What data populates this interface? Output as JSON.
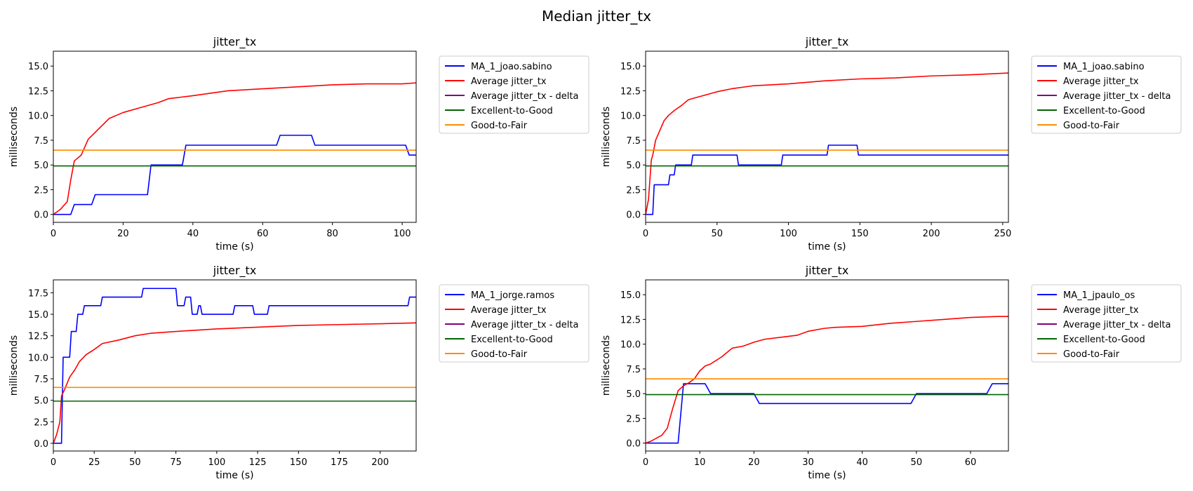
{
  "figure": {
    "suptitle": "Median jitter_tx"
  },
  "colors": {
    "user": "#0000ff",
    "average": "#ff0000",
    "delta": "#800080",
    "excellent_to_good": "#006400",
    "good_to_fair": "#ff8c00"
  },
  "chart_data": [
    {
      "type": "line",
      "title": "jitter_tx",
      "xlabel": "time (s)",
      "ylabel": "milliseconds",
      "xlim": [
        0,
        104
      ],
      "ylim": [
        -0.8,
        16.5
      ],
      "xticks": [
        0,
        20,
        40,
        60,
        80,
        100
      ],
      "yticks": [
        0.0,
        2.5,
        5.0,
        7.5,
        10.0,
        12.5,
        15.0
      ],
      "tick_decimals": 1,
      "grid": false,
      "legend_position": "outside-upper-right",
      "legend": [
        "MA_1_joao.sabino",
        "Average jitter_tx",
        "Average jitter_tx - delta",
        "Excellent-to-Good",
        "Good-to-Fair"
      ],
      "series": [
        {
          "name": "MA_1_joao.sabino",
          "color": "#0000ff",
          "x": [
            0,
            5,
            6,
            11,
            12,
            27,
            28,
            37,
            38,
            64,
            65,
            74,
            75,
            101,
            102,
            104
          ],
          "y": [
            0,
            0,
            1,
            1,
            2,
            2,
            5,
            5,
            7,
            7,
            8,
            8,
            7,
            7,
            6,
            6
          ]
        },
        {
          "name": "Average jitter_tx",
          "color": "#ff0000",
          "x": [
            0,
            2,
            4,
            5,
            6,
            8,
            10,
            12,
            14,
            16,
            20,
            25,
            30,
            33,
            40,
            50,
            60,
            70,
            80,
            90,
            100,
            104
          ],
          "y": [
            0,
            0.5,
            1.3,
            3.5,
            5.4,
            6,
            7.6,
            8.3,
            9,
            9.7,
            10.3,
            10.8,
            11.3,
            11.7,
            12,
            12.5,
            12.7,
            12.9,
            13.1,
            13.2,
            13.2,
            13.3
          ]
        },
        {
          "name": "Average jitter_tx - delta",
          "color": "#800080",
          "x": [],
          "y": []
        },
        {
          "name": "Excellent-to-Good",
          "color": "#006400",
          "x": [
            0,
            104
          ],
          "y": [
            4.9,
            4.9
          ]
        },
        {
          "name": "Good-to-Fair",
          "color": "#ff8c00",
          "x": [
            0,
            104
          ],
          "y": [
            6.5,
            6.5
          ]
        }
      ]
    },
    {
      "type": "line",
      "title": "jitter_tx",
      "xlabel": "time (s)",
      "ylabel": "milliseconds",
      "xlim": [
        0,
        254
      ],
      "ylim": [
        -0.8,
        16.5
      ],
      "xticks": [
        0,
        50,
        100,
        150,
        200,
        250
      ],
      "yticks": [
        0.0,
        2.5,
        5.0,
        7.5,
        10.0,
        12.5,
        15.0
      ],
      "tick_decimals": 1,
      "grid": false,
      "legend_position": "outside-upper-right",
      "legend": [
        "MA_1_joao.sabino",
        "Average jitter_tx",
        "Average jitter_tx - delta",
        "Excellent-to-Good",
        "Good-to-Fair"
      ],
      "series": [
        {
          "name": "MA_1_joao.sabino",
          "color": "#0000ff",
          "x": [
            0,
            5,
            6,
            16,
            17,
            20,
            21,
            32,
            33,
            64,
            65,
            95,
            96,
            127,
            128,
            148,
            149,
            254
          ],
          "y": [
            0,
            0,
            3,
            3,
            4,
            4,
            5,
            5,
            6,
            6,
            5,
            5,
            6,
            6,
            7,
            7,
            6,
            6
          ]
        },
        {
          "name": "Average jitter_tx",
          "color": "#ff0000",
          "x": [
            0,
            2,
            4,
            5,
            7,
            10,
            13,
            16,
            20,
            25,
            30,
            35,
            40,
            50,
            60,
            75,
            100,
            125,
            150,
            175,
            200,
            225,
            254
          ],
          "y": [
            0,
            1.5,
            5.5,
            6,
            7.5,
            8.5,
            9.5,
            10,
            10.5,
            11,
            11.6,
            11.8,
            12,
            12.4,
            12.7,
            13,
            13.2,
            13.5,
            13.7,
            13.8,
            14,
            14.1,
            14.3
          ]
        },
        {
          "name": "Average jitter_tx - delta",
          "color": "#800080",
          "x": [],
          "y": []
        },
        {
          "name": "Excellent-to-Good",
          "color": "#006400",
          "x": [
            0,
            254
          ],
          "y": [
            4.9,
            4.9
          ]
        },
        {
          "name": "Good-to-Fair",
          "color": "#ff8c00",
          "x": [
            0,
            254
          ],
          "y": [
            6.5,
            6.5
          ]
        }
      ]
    },
    {
      "type": "line",
      "title": "jitter_tx",
      "xlabel": "time (s)",
      "ylabel": "milliseconds",
      "xlim": [
        0,
        222
      ],
      "ylim": [
        -0.9,
        19.0
      ],
      "xticks": [
        0,
        25,
        50,
        75,
        100,
        125,
        150,
        175,
        200
      ],
      "yticks": [
        0.0,
        2.5,
        5.0,
        7.5,
        10.0,
        12.5,
        15.0,
        17.5
      ],
      "tick_decimals": 1,
      "grid": false,
      "legend_position": "outside-upper-right",
      "legend": [
        "MA_1_jorge.ramos",
        "Average jitter_tx",
        "Average jitter_tx - delta",
        "Excellent-to-Good",
        "Good-to-Fair"
      ],
      "series": [
        {
          "name": "MA_1_jorge.ramos",
          "color": "#0000ff",
          "x": [
            0,
            5,
            6,
            10,
            11,
            14,
            15,
            18,
            19,
            29,
            30,
            54,
            55,
            75,
            76,
            80,
            81,
            84,
            85,
            88,
            89,
            90,
            91,
            110,
            111,
            122,
            123,
            131,
            132,
            217,
            218,
            222
          ],
          "y": [
            0,
            0,
            10,
            10,
            13,
            13,
            15,
            15,
            16,
            16,
            17,
            17,
            18,
            18,
            16,
            16,
            17,
            17,
            15,
            15,
            16,
            16,
            15,
            15,
            16,
            16,
            15,
            15,
            16,
            16,
            17,
            17
          ]
        },
        {
          "name": "Average jitter_tx",
          "color": "#ff0000",
          "x": [
            0,
            2,
            4,
            5,
            7,
            10,
            13,
            16,
            20,
            25,
            30,
            40,
            50,
            60,
            75,
            100,
            125,
            150,
            175,
            200,
            222
          ],
          "y": [
            0,
            1,
            2.5,
            5.5,
            6.3,
            7.7,
            8.5,
            9.5,
            10.3,
            10.9,
            11.6,
            12,
            12.5,
            12.8,
            13,
            13.3,
            13.5,
            13.7,
            13.8,
            13.9,
            14
          ]
        },
        {
          "name": "Average jitter_tx - delta",
          "color": "#800080",
          "x": [],
          "y": []
        },
        {
          "name": "Excellent-to-Good",
          "color": "#006400",
          "x": [
            0,
            222
          ],
          "y": [
            4.9,
            4.9
          ]
        },
        {
          "name": "Good-to-Fair",
          "color": "#ff8c00",
          "x": [
            0,
            222
          ],
          "y": [
            6.5,
            6.5
          ]
        }
      ]
    },
    {
      "type": "line",
      "title": "jitter_tx",
      "xlabel": "time (s)",
      "ylabel": "milliseconds",
      "xlim": [
        0,
        67
      ],
      "ylim": [
        -0.8,
        16.5
      ],
      "xticks": [
        0,
        10,
        20,
        30,
        40,
        50,
        60
      ],
      "yticks": [
        0.0,
        2.5,
        5.0,
        7.5,
        10.0,
        12.5,
        15.0
      ],
      "tick_decimals": 1,
      "grid": false,
      "legend_position": "outside-upper-right",
      "legend": [
        "MA_1_jpaulo_os",
        "Average jitter_tx",
        "Average jitter_tx - delta",
        "Excellent-to-Good",
        "Good-to-Fair"
      ],
      "series": [
        {
          "name": "MA_1_jpaulo_os",
          "color": "#0000ff",
          "x": [
            0,
            6,
            7,
            11,
            12,
            20,
            21,
            49,
            50,
            63,
            64,
            67
          ],
          "y": [
            0,
            0,
            6,
            6,
            5,
            5,
            4,
            4,
            5,
            5,
            6,
            6
          ]
        },
        {
          "name": "Average jitter_tx",
          "color": "#ff0000",
          "x": [
            0,
            1,
            2,
            3,
            4,
            5,
            6,
            7,
            8,
            9,
            10,
            11,
            12,
            14,
            16,
            18,
            20,
            22,
            25,
            28,
            30,
            33,
            35,
            40,
            45,
            50,
            55,
            60,
            65,
            67
          ],
          "y": [
            0,
            0.2,
            0.5,
            0.8,
            1.5,
            3.5,
            5.3,
            5.8,
            6.1,
            6.5,
            7.3,
            7.8,
            8,
            8.7,
            9.6,
            9.8,
            10.2,
            10.5,
            10.7,
            10.9,
            11.3,
            11.6,
            11.7,
            11.8,
            12.1,
            12.3,
            12.5,
            12.7,
            12.8,
            12.8
          ]
        },
        {
          "name": "Average jitter_tx - delta",
          "color": "#800080",
          "x": [],
          "y": []
        },
        {
          "name": "Excellent-to-Good",
          "color": "#006400",
          "x": [
            0,
            67
          ],
          "y": [
            4.9,
            4.9
          ]
        },
        {
          "name": "Good-to-Fair",
          "color": "#ff8c00",
          "x": [
            0,
            67
          ],
          "y": [
            6.5,
            6.5
          ]
        }
      ]
    }
  ]
}
